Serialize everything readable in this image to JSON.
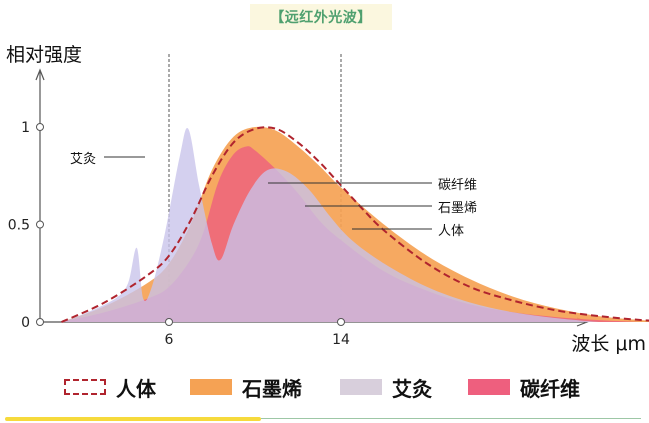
{
  "title": "【远红外光波】",
  "chart_data": {
    "type": "area",
    "ylabel": "相对强度",
    "xlabel": "波长 μm",
    "x_range": [
      0,
      30
    ],
    "ylim": [
      0,
      1
    ],
    "y_ticks": [
      {
        "label": "0",
        "value": 0
      },
      {
        "label": "0.5",
        "value": 0.5
      },
      {
        "label": "1",
        "value": 1
      }
    ],
    "x_ticks": [
      {
        "label": "6",
        "value": 6
      },
      {
        "label": "14",
        "value": 14
      }
    ],
    "vlines": [
      6,
      14
    ],
    "series": [
      {
        "name": "石墨烯",
        "style": "fill",
        "color": "#f5a254",
        "opacity": 0.92,
        "points": [
          [
            1,
            0
          ],
          [
            3,
            0.08
          ],
          [
            5,
            0.2
          ],
          [
            6,
            0.3
          ],
          [
            7,
            0.5
          ],
          [
            8,
            0.78
          ],
          [
            9,
            0.95
          ],
          [
            10,
            1.0
          ],
          [
            11,
            0.98
          ],
          [
            12,
            0.9
          ],
          [
            13,
            0.8
          ],
          [
            14,
            0.69
          ],
          [
            16,
            0.5
          ],
          [
            18,
            0.34
          ],
          [
            20,
            0.22
          ],
          [
            22,
            0.13
          ],
          [
            24,
            0.07
          ],
          [
            26,
            0.03
          ],
          [
            28,
            0.01
          ],
          [
            29.5,
            0
          ]
        ]
      },
      {
        "name": "碳纤维",
        "style": "fill",
        "color": "#ee5f7e",
        "opacity": 0.8,
        "points": [
          [
            1,
            0
          ],
          [
            3,
            0.05
          ],
          [
            5,
            0.12
          ],
          [
            6,
            0.18
          ],
          [
            7,
            0.32
          ],
          [
            7.6,
            0.46
          ],
          [
            8.3,
            0.72
          ],
          [
            9,
            0.86
          ],
          [
            9.6,
            0.9
          ],
          [
            10,
            0.88
          ],
          [
            11,
            0.78
          ],
          [
            12,
            0.66
          ],
          [
            13,
            0.52
          ],
          [
            14,
            0.42
          ],
          [
            16,
            0.26
          ],
          [
            18,
            0.16
          ],
          [
            20,
            0.09
          ],
          [
            22,
            0.05
          ],
          [
            24,
            0.025
          ],
          [
            26,
            0.01
          ],
          [
            28,
            0
          ]
        ]
      },
      {
        "name": "艾灸",
        "style": "fill",
        "color": "#c8c3ea",
        "opacity": 0.78,
        "points": [
          [
            1,
            0
          ],
          [
            2,
            0.04
          ],
          [
            3.5,
            0.12
          ],
          [
            4.1,
            0.2
          ],
          [
            4.5,
            0.38
          ],
          [
            4.8,
            0.12
          ],
          [
            5.2,
            0.18
          ],
          [
            5.8,
            0.45
          ],
          [
            6.5,
            0.85
          ],
          [
            6.9,
            0.99
          ],
          [
            7.4,
            0.7
          ],
          [
            8,
            0.4
          ],
          [
            8.4,
            0.32
          ],
          [
            9,
            0.5
          ],
          [
            9.8,
            0.68
          ],
          [
            10.6,
            0.78
          ],
          [
            11.5,
            0.77
          ],
          [
            12.5,
            0.68
          ],
          [
            13.5,
            0.54
          ],
          [
            14.5,
            0.42
          ],
          [
            16,
            0.3
          ],
          [
            18,
            0.18
          ],
          [
            20,
            0.1
          ],
          [
            22,
            0.05
          ],
          [
            24,
            0.02
          ],
          [
            26,
            0
          ]
        ]
      },
      {
        "name": "人体",
        "style": "dash",
        "color": "#b0242e",
        "points": [
          [
            1,
            0
          ],
          [
            3,
            0.1
          ],
          [
            5,
            0.24
          ],
          [
            6,
            0.34
          ],
          [
            7,
            0.52
          ],
          [
            8,
            0.75
          ],
          [
            9,
            0.92
          ],
          [
            10,
            0.99
          ],
          [
            11,
            0.99
          ],
          [
            12,
            0.92
          ],
          [
            13,
            0.82
          ],
          [
            14,
            0.7
          ],
          [
            15,
            0.58
          ],
          [
            16,
            0.47
          ],
          [
            18,
            0.3
          ],
          [
            20,
            0.18
          ],
          [
            22,
            0.11
          ],
          [
            24,
            0.06
          ],
          [
            26,
            0.03
          ],
          [
            28,
            0.01
          ],
          [
            29.5,
            0
          ]
        ]
      }
    ],
    "annotations": [
      {
        "text": "艾灸",
        "target": "艾灸"
      },
      {
        "text": "碳纤维",
        "target": "碳纤维"
      },
      {
        "text": "石墨烯",
        "target": "石墨烯"
      },
      {
        "text": "人体",
        "target": "人体"
      }
    ],
    "legend": {
      "position": "bottom",
      "items": [
        {
          "label": "人体",
          "color": "#b0242e",
          "style": "dash"
        },
        {
          "label": "石墨烯",
          "color": "#f5a254",
          "style": "fill"
        },
        {
          "label": "艾灸",
          "color": "#d8cfdc",
          "style": "fill"
        },
        {
          "label": "碳纤维",
          "color": "#ee5f7e",
          "style": "fill"
        }
      ]
    }
  }
}
